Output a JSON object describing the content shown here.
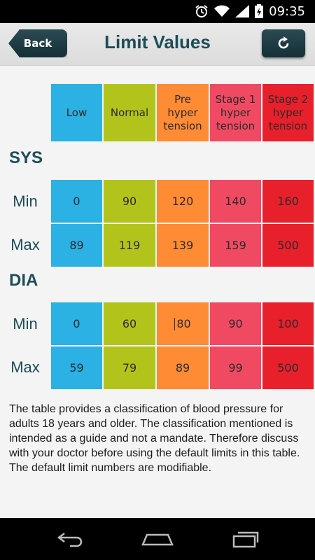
{
  "status_bar": {
    "time": "09:35"
  },
  "header": {
    "back_label": "Back",
    "title": "Limit Values"
  },
  "colors": {
    "low": "#2bb1e3",
    "normal": "#b2c41b",
    "pre": "#ff8b35",
    "stage1": "#f04a63",
    "stage2": "#e8202b",
    "accent": "#1d4d57"
  },
  "table": {
    "columns": [
      "Low",
      "Normal",
      "Pre hyper tension",
      "Stage 1 hyper tension",
      "Stage 2 hyper tension"
    ],
    "sections": [
      {
        "label": "SYS",
        "rows": [
          {
            "label": "Min",
            "values": [
              "0",
              "90",
              "120",
              "140",
              "160"
            ]
          },
          {
            "label": "Max",
            "values": [
              "89",
              "119",
              "139",
              "159",
              "500"
            ]
          }
        ]
      },
      {
        "label": "DIA",
        "rows": [
          {
            "label": "Min",
            "values": [
              "0",
              "60",
              "80",
              "90",
              "100"
            ]
          },
          {
            "label": "Max",
            "values": [
              "59",
              "79",
              "89",
              "99",
              "500"
            ]
          }
        ]
      }
    ]
  },
  "note": "The table provides a classification of blood pressure for adults 18 years and older. The classification mentioned is intended as a guide and not a mandate. Therefore discuss with your doctor before using the default limits in this table. The default limit numbers are modifiable."
}
